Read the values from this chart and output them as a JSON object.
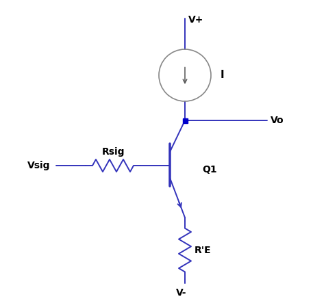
{
  "circuit_color": "#3333BB",
  "text_color": "#000000",
  "background": "#FFFFFF",
  "node_color": "#0000CC",
  "labels": {
    "Vplus": "V+",
    "I": "I",
    "Vo": "Vo",
    "Q1": "Q1",
    "Rsig": "Rsig",
    "Vsig": "Vsig",
    "RE": "R'E",
    "Vminus": "V-"
  },
  "figsize": [
    4.57,
    4.37
  ],
  "dpi": 100
}
